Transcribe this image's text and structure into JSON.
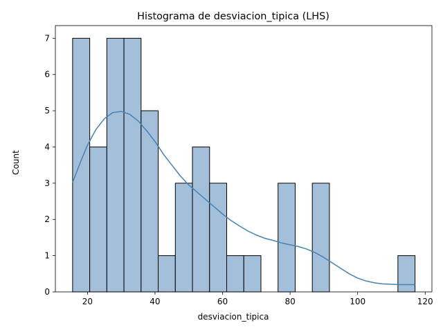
{
  "chart_data": {
    "type": "bar",
    "title": "Histograma de desviacion_tipica (LHS)",
    "xlabel": "desviacion_tipica",
    "ylabel": "Count",
    "xlim": [
      10.5,
      122.0
    ],
    "ylim": [
      0,
      7.35
    ],
    "xticks": [
      20,
      40,
      60,
      80,
      100,
      120
    ],
    "yticks": [
      0,
      1,
      2,
      3,
      4,
      5,
      6,
      7
    ],
    "bin_edges": [
      15.6,
      20.67,
      25.74,
      30.81,
      35.88,
      40.95,
      46.02,
      51.09,
      56.16,
      61.23,
      66.3,
      71.37,
      76.44,
      81.51,
      86.58,
      91.65,
      96.72,
      101.79,
      106.86,
      111.93,
      117.0
    ],
    "counts": [
      7,
      4,
      7,
      7,
      5,
      1,
      3,
      4,
      3,
      1,
      1,
      0,
      3,
      0,
      3,
      0,
      0,
      0,
      0,
      1
    ],
    "kde": {
      "x": [
        15.6,
        18,
        20,
        22.5,
        25,
        27.5,
        30,
        32.5,
        35,
        37.5,
        40,
        42.5,
        45,
        47.5,
        50,
        52.5,
        55,
        57.5,
        60,
        62.5,
        65,
        67.5,
        70,
        72.5,
        75,
        77.5,
        80,
        82.5,
        85,
        87.5,
        90,
        92.5,
        95,
        97.5,
        100,
        102.5,
        105,
        107.5,
        110,
        112.5,
        115,
        117
      ],
      "y": [
        3.02,
        3.6,
        4.05,
        4.48,
        4.78,
        4.95,
        4.98,
        4.9,
        4.72,
        4.45,
        4.15,
        3.8,
        3.5,
        3.2,
        2.95,
        2.75,
        2.55,
        2.35,
        2.15,
        1.97,
        1.82,
        1.68,
        1.57,
        1.48,
        1.42,
        1.35,
        1.3,
        1.25,
        1.18,
        1.08,
        0.95,
        0.8,
        0.65,
        0.5,
        0.38,
        0.3,
        0.25,
        0.22,
        0.21,
        0.2,
        0.2,
        0.2
      ]
    },
    "colors": {
      "bar_fill": "#a3bfda",
      "bar_edge": "#000000",
      "kde_line": "#4682b4"
    },
    "grid": false,
    "legend": "none"
  }
}
